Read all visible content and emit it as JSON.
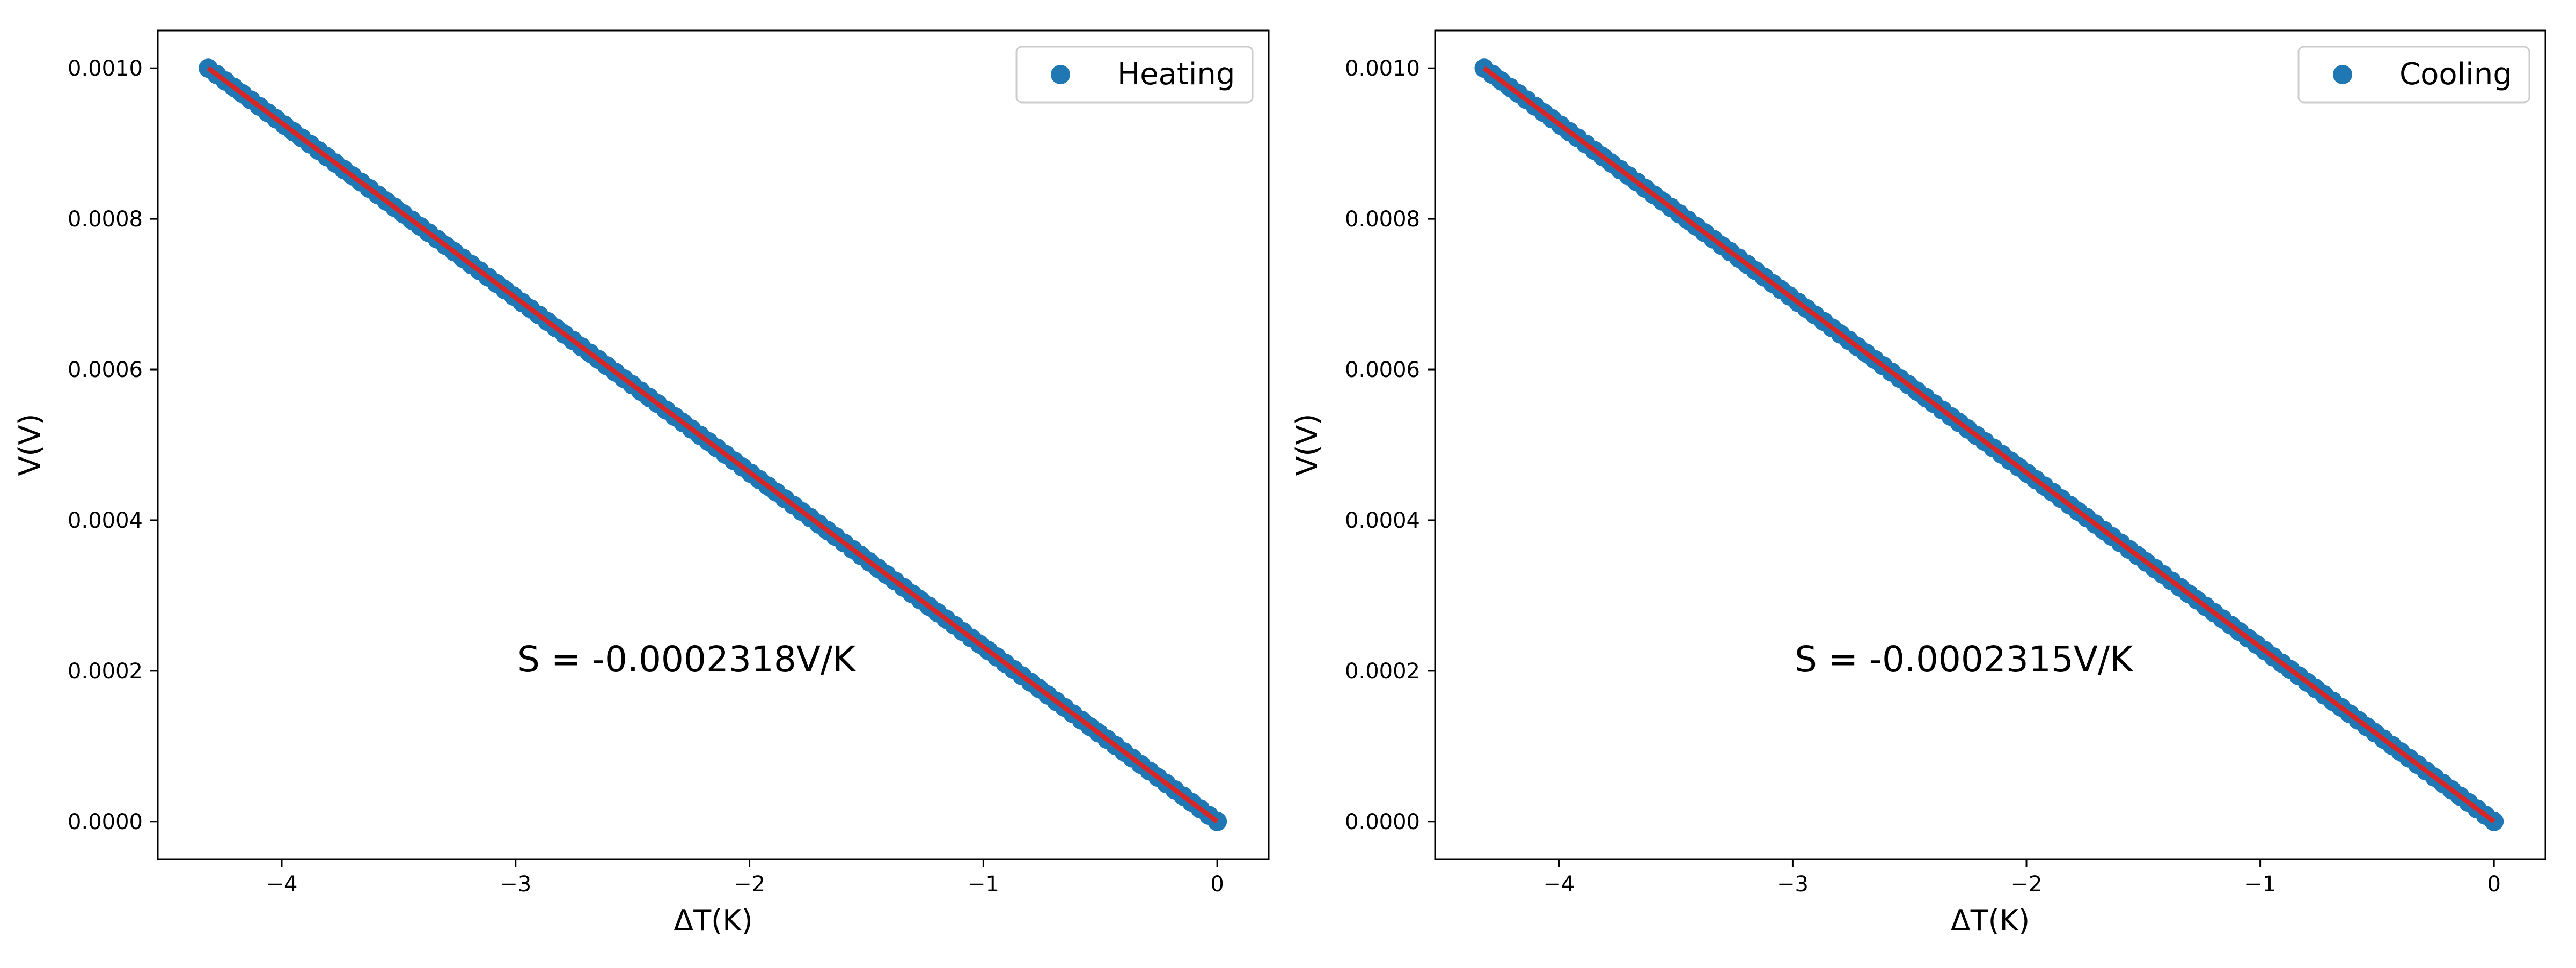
{
  "chart_data": [
    {
      "type": "scatter",
      "xlabel": "ΔT(K)",
      "ylabel": "V(V)",
      "xlim": [
        -4.53,
        0.22
      ],
      "ylim": [
        -5e-05,
        0.00105
      ],
      "x_ticks": [
        -4,
        -3,
        -2,
        -1,
        0
      ],
      "x_tick_labels": [
        "−4",
        "−3",
        "−2",
        "−1",
        "0"
      ],
      "y_ticks": [
        0.0,
        0.0002,
        0.0004,
        0.0006,
        0.0008,
        0.001
      ],
      "y_tick_labels": [
        "0.0000",
        "0.0002",
        "0.0004",
        "0.0006",
        "0.0008",
        "0.0010"
      ],
      "annotation": "S = -0.0002318V/K",
      "legend": {
        "position": "top-right",
        "entries": [
          "Heating"
        ]
      },
      "series": [
        {
          "name": "Heating",
          "kind": "points",
          "color": "#1f77b4",
          "x_start": -4.314,
          "x_end": 0.0,
          "count": 120,
          "slope": -0.0002318,
          "intercept": 0.0
        },
        {
          "kind": "fit-line",
          "color": "#d62728",
          "x_start": -4.314,
          "x_end": 0.0,
          "slope": -0.0002318,
          "intercept": 0.0
        }
      ],
      "grid": false
    },
    {
      "type": "scatter",
      "xlabel": "ΔT(K)",
      "ylabel": "V(V)",
      "xlim": [
        -4.53,
        0.22
      ],
      "ylim": [
        -5e-05,
        0.00105
      ],
      "x_ticks": [
        -4,
        -3,
        -2,
        -1,
        0
      ],
      "x_tick_labels": [
        "−4",
        "−3",
        "−2",
        "−1",
        "0"
      ],
      "y_ticks": [
        0.0,
        0.0002,
        0.0004,
        0.0006,
        0.0008,
        0.001
      ],
      "y_tick_labels": [
        "0.0000",
        "0.0002",
        "0.0004",
        "0.0006",
        "0.0008",
        "0.0010"
      ],
      "annotation": "S = -0.0002315V/K",
      "legend": {
        "position": "top-right",
        "entries": [
          "Cooling"
        ]
      },
      "series": [
        {
          "name": "Cooling",
          "kind": "points",
          "color": "#1f77b4",
          "x_start": -4.32,
          "x_end": 0.0,
          "count": 120,
          "slope": -0.0002315,
          "intercept": 0.0
        },
        {
          "kind": "fit-line",
          "color": "#d62728",
          "x_start": -4.32,
          "x_end": 0.0,
          "slope": -0.0002315,
          "intercept": 0.0
        }
      ],
      "grid": false
    }
  ]
}
